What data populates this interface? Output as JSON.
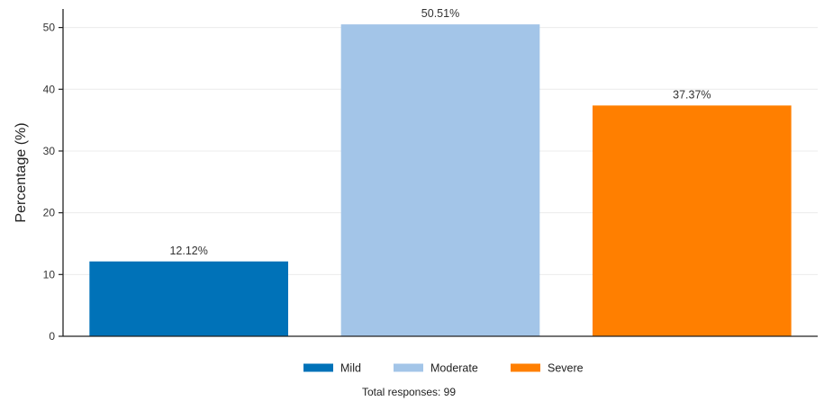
{
  "chart_data": {
    "type": "bar",
    "categories": [
      "Mild",
      "Moderate",
      "Severe"
    ],
    "values": [
      12.12,
      50.51,
      37.37
    ],
    "data_labels": [
      "12.12%",
      "50.51%",
      "37.37%"
    ],
    "colors": [
      "#0072b8",
      "#a3c5e8",
      "#ff7f00"
    ],
    "title": "",
    "xlabel": "",
    "ylabel": "Percentage (%)",
    "ylim": [
      0,
      53
    ],
    "yticks": [
      0,
      10,
      20,
      30,
      40,
      50
    ],
    "grid": "y",
    "legend": {
      "placement": "bottom-center",
      "entries": [
        "Mild",
        "Moderate",
        "Severe"
      ]
    },
    "caption": "Total responses: 99"
  }
}
